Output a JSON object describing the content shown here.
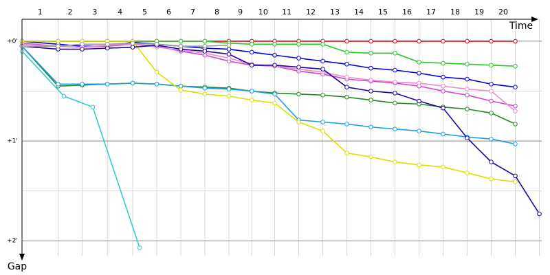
{
  "chart_data": {
    "type": "line",
    "x_title": "Time",
    "y_title": "Gap",
    "laps": [
      "1",
      "2",
      "3",
      "4",
      "5",
      "6",
      "7",
      "8",
      "9",
      "10",
      "11",
      "12",
      "13",
      "14",
      "15",
      "16",
      "17",
      "18",
      "19",
      "20"
    ],
    "x": [
      0,
      1.5,
      2.5,
      3.55,
      4.6,
      5.6,
      6.6,
      7.6,
      8.6,
      9.55,
      10.5,
      11.5,
      12.5,
      13.5,
      14.5,
      15.5,
      16.5,
      17.5,
      18.5,
      19.5,
      20.5,
      21.5
    ],
    "xlim": [
      0,
      21.6
    ],
    "ylim": [
      -0.22,
      2.15
    ],
    "yticks": [
      {
        "value": 0,
        "label": "+0'"
      },
      {
        "value": 1,
        "label": "+1'"
      },
      {
        "value": 2,
        "label": "+2'"
      }
    ],
    "minor_yticks": [
      0.5,
      1.5
    ],
    "grid": true,
    "series": [
      {
        "color": "#e00000",
        "values": [
          0,
          0,
          0,
          0,
          0,
          0,
          0,
          0,
          0,
          0,
          0,
          0,
          0,
          0,
          0,
          0,
          0,
          0,
          0,
          0,
          0,
          null
        ]
      },
      {
        "color": "#22cc22",
        "values": [
          0,
          0,
          0,
          0,
          0,
          0,
          0,
          0,
          0.02,
          0.03,
          0.03,
          0.03,
          0.03,
          0.11,
          0.12,
          0.12,
          0.21,
          0.22,
          0.23,
          0.24,
          0.25,
          null
        ]
      },
      {
        "color": "#0000dd",
        "values": [
          0,
          0.03,
          0.05,
          0.05,
          0.01,
          0.03,
          0.05,
          0.07,
          0.08,
          0.11,
          0.14,
          0.17,
          0.2,
          0.23,
          0.27,
          0.29,
          0.32,
          0.36,
          0.38,
          0.43,
          0.46,
          null
        ]
      },
      {
        "color": "#cc44cc",
        "values": [
          0.02,
          0.05,
          0.06,
          0.05,
          0.03,
          0.05,
          0.1,
          0.14,
          0.2,
          0.24,
          0.25,
          0.3,
          0.33,
          0.38,
          0.4,
          0.42,
          0.45,
          0.5,
          0.54,
          0.6,
          0.65,
          null
        ]
      },
      {
        "color": "#ee88cc",
        "values": [
          0.03,
          0.05,
          0.06,
          0.04,
          0.03,
          0.06,
          0.09,
          0.12,
          0.17,
          0.23,
          0.25,
          0.28,
          0.31,
          0.36,
          0.39,
          0.41,
          0.42,
          0.45,
          0.48,
          0.5,
          0.7,
          null
        ]
      },
      {
        "color": "#228822",
        "values": [
          0.05,
          0.45,
          0.44,
          0.43,
          0.42,
          0.43,
          0.45,
          0.46,
          0.47,
          0.5,
          0.52,
          0.53,
          0.54,
          0.56,
          0.59,
          0.62,
          0.63,
          0.66,
          0.68,
          0.72,
          0.83,
          null
        ]
      },
      {
        "color": "#1aa0e0",
        "values": [
          0.05,
          0.43,
          0.43,
          0.43,
          0.42,
          0.43,
          0.45,
          0.47,
          0.48,
          0.5,
          0.53,
          0.79,
          0.81,
          0.83,
          0.86,
          0.88,
          0.9,
          0.93,
          0.96,
          0.98,
          1.03,
          null
        ]
      },
      {
        "color": "#dddd00",
        "values": [
          0,
          0,
          0,
          0,
          0,
          0.31,
          0.49,
          0.53,
          0.55,
          0.59,
          0.62,
          0.81,
          0.9,
          1.12,
          1.16,
          1.21,
          1.24,
          1.26,
          1.32,
          1.38,
          1.41,
          null
        ]
      },
      {
        "color": "#220099",
        "values": [
          0.05,
          0.08,
          0.08,
          0.07,
          0.06,
          0.04,
          0.08,
          0.1,
          0.13,
          0.24,
          0.24,
          0.26,
          0.28,
          0.46,
          0.5,
          0.52,
          0.6,
          0.67,
          0.97,
          1.21,
          1.35,
          1.73
        ]
      },
      {
        "color": "#999999",
        "values": [
          0.05,
          0.05,
          0.03,
          0.03,
          0.02,
          0.03,
          0.05,
          0.05,
          0.04,
          null,
          null,
          null,
          null,
          null,
          null,
          null,
          null,
          null,
          null,
          null,
          null,
          null
        ]
      },
      {
        "color": "#33cccc",
        "x": [
          0,
          1.74,
          2.94,
          4.89
        ],
        "values": [
          0.1,
          0.55,
          0.66,
          2.07
        ]
      }
    ]
  }
}
